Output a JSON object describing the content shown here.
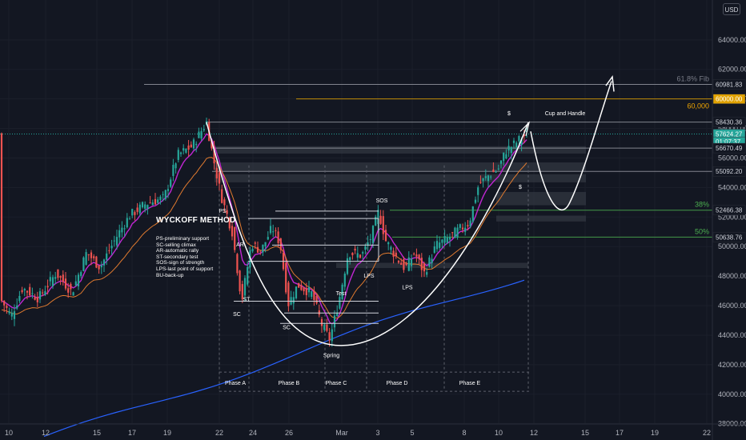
{
  "ui": {
    "currency_button": "USD"
  },
  "chart_data": {
    "type": "candlestick",
    "x_ticks": [
      "10",
      "12",
      "15",
      "17",
      "19",
      "22",
      "24",
      "26",
      "Mar",
      "3",
      "5",
      "8",
      "10",
      "12",
      "15",
      "17",
      "19",
      "22"
    ],
    "y_ticks": [
      38000,
      40000,
      42000,
      44000,
      46000,
      48000,
      50000,
      52000,
      54000,
      56000,
      58000,
      60000,
      62000,
      64000
    ],
    "y_range": [
      36900,
      66700
    ],
    "price_labels": [
      {
        "value": 60981.83,
        "text": "60981.83",
        "color": "#131722",
        "text_color": "#d1d4dc"
      },
      {
        "value": 60000,
        "text": "60000.00",
        "color": "#e0a100",
        "text_color": "#ffffff"
      },
      {
        "value": 58430.36,
        "text": "58430.36",
        "color": "#131722",
        "text_color": "#d1d4dc"
      },
      {
        "value": 57624.27,
        "text": "57624.27",
        "color": "#26a69a",
        "text_color": "#ffffff"
      },
      {
        "value": 57100,
        "text": "01:07:37",
        "color": "#26a69a",
        "text_color": "#ffffff"
      },
      {
        "value": 56670.49,
        "text": "56670.49",
        "color": "#131722",
        "text_color": "#d1d4dc"
      },
      {
        "value": 55092.2,
        "text": "55092.20",
        "color": "#131722",
        "text_color": "#d1d4dc"
      },
      {
        "value": 52466.38,
        "text": "52466.38",
        "color": "#131722",
        "text_color": "#d1d4dc"
      },
      {
        "value": 50638.76,
        "text": "50638.76",
        "color": "#131722",
        "text_color": "#d1d4dc"
      }
    ],
    "levels": [
      {
        "name": "Fib 61.8%",
        "value": 60981.83,
        "color": "#9598a1",
        "label": "61.8% Fib",
        "label_color": "#787b86"
      },
      {
        "name": "60k",
        "value": 60000,
        "color": "#e0a100",
        "label": "60,000",
        "label_color": "#f0a500"
      },
      {
        "name": "ATH",
        "value": 58430.36,
        "color": "#9598a1",
        "label": "",
        "label_color": ""
      },
      {
        "name": "res",
        "value": 56670.49,
        "color": "#9598a1",
        "label": "",
        "label_color": ""
      },
      {
        "name": "sup",
        "value": 55092.2,
        "color": "#9598a1",
        "label": "",
        "label_color": ""
      },
      {
        "name": "Fib 38%",
        "value": 52466.38,
        "color": "#4caf50",
        "label": "38%",
        "label_color": "#4caf50"
      },
      {
        "name": "Fib 50%",
        "value": 50638.76,
        "color": "#4caf50",
        "label": "50%",
        "label_color": "#4caf50"
      }
    ],
    "wyckoff_legend": {
      "title": "WYCKOFF METHOD",
      "lines": [
        "PS-preliminary support",
        "SC-selling climax",
        "AR-automatic rally",
        "ST-secondary test",
        "SOS-sign of strength",
        "LPS-last point of support",
        "BU-back-up"
      ]
    },
    "annotations": [
      "PS",
      "AR",
      "ST",
      "SC",
      "SC",
      "Spring",
      "Test",
      "SOS",
      "LPS",
      "LPS",
      "Cup and Handle",
      "$",
      "$"
    ],
    "phases": [
      "Phase A",
      "Phase B",
      "Phase C",
      "Phase D",
      "Phase E"
    ],
    "series_colors": {
      "up": "#26a69a",
      "down": "#ef5350",
      "ema_fast": "#c026d3",
      "ema_mid": "#e07a2f",
      "ema_slow": "#2962ff"
    }
  }
}
